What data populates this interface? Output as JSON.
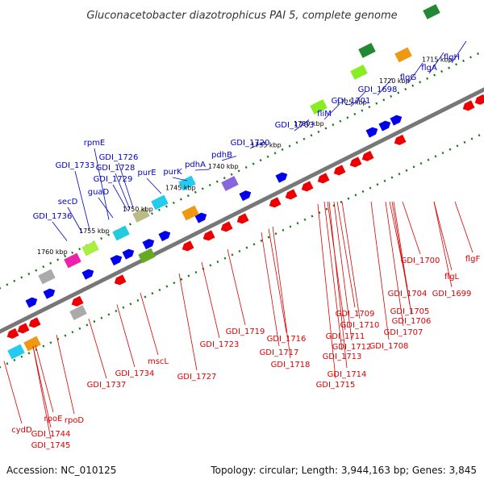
{
  "title": "Gluconacetobacter diazotrophicus PAI 5, complete genome",
  "footer": {
    "accession": "Accession: NC_010125",
    "summary": "Topology: circular; Length: 3,944,163 bp; Genes: 3,845"
  },
  "colors": {
    "top_strand_label": "#0000cc",
    "bottom_strand_label": "#dd0000",
    "backbone": "#777777",
    "tick": "#117711",
    "forward_gene": "#0000ee",
    "reverse_gene": "#ee0000"
  },
  "scale_labels": [
    "1760 kbp",
    "1755 kbp",
    "1750 kbp",
    "1745 kbp",
    "1740 kbp",
    "1735 kbp",
    "1730 kbp",
    "1725 kbp",
    "1720 kbp",
    "1715 kbp"
  ],
  "top_labels": [
    "GDI_1736",
    "secD",
    "GDI_1733",
    "rpmE",
    "GDI_1726",
    "GDI_1728",
    "GDI_1729",
    "guaD",
    "purE",
    "purK",
    "pdhA",
    "pdhB",
    "GDI_1720",
    "GDI_1703",
    "fliM",
    "GDI_1701",
    "GDI_1698",
    "flgG",
    "flgA",
    "flgH"
  ],
  "bottom_labels": [
    "cydD",
    "GDI_1745",
    "GDI_1744",
    "rpoE",
    "rpoD",
    "GDI_1737",
    "GDI_1734",
    "mscL",
    "GDI_1727",
    "GDI_1723",
    "GDI_1719",
    "GDI_1717",
    "GDI_1716",
    "GDI_1718",
    "GDI_1709",
    "GDI_1710",
    "GDI_1711",
    "GDI_1712",
    "GDI_1713",
    "GDI_1714",
    "GDI_1715",
    "GDI_1704",
    "GDI_1705",
    "GDI_1706",
    "GDI_1707",
    "GDI_1708",
    "GDI_1700",
    "flgL",
    "GDI_1699",
    "flgF"
  ]
}
